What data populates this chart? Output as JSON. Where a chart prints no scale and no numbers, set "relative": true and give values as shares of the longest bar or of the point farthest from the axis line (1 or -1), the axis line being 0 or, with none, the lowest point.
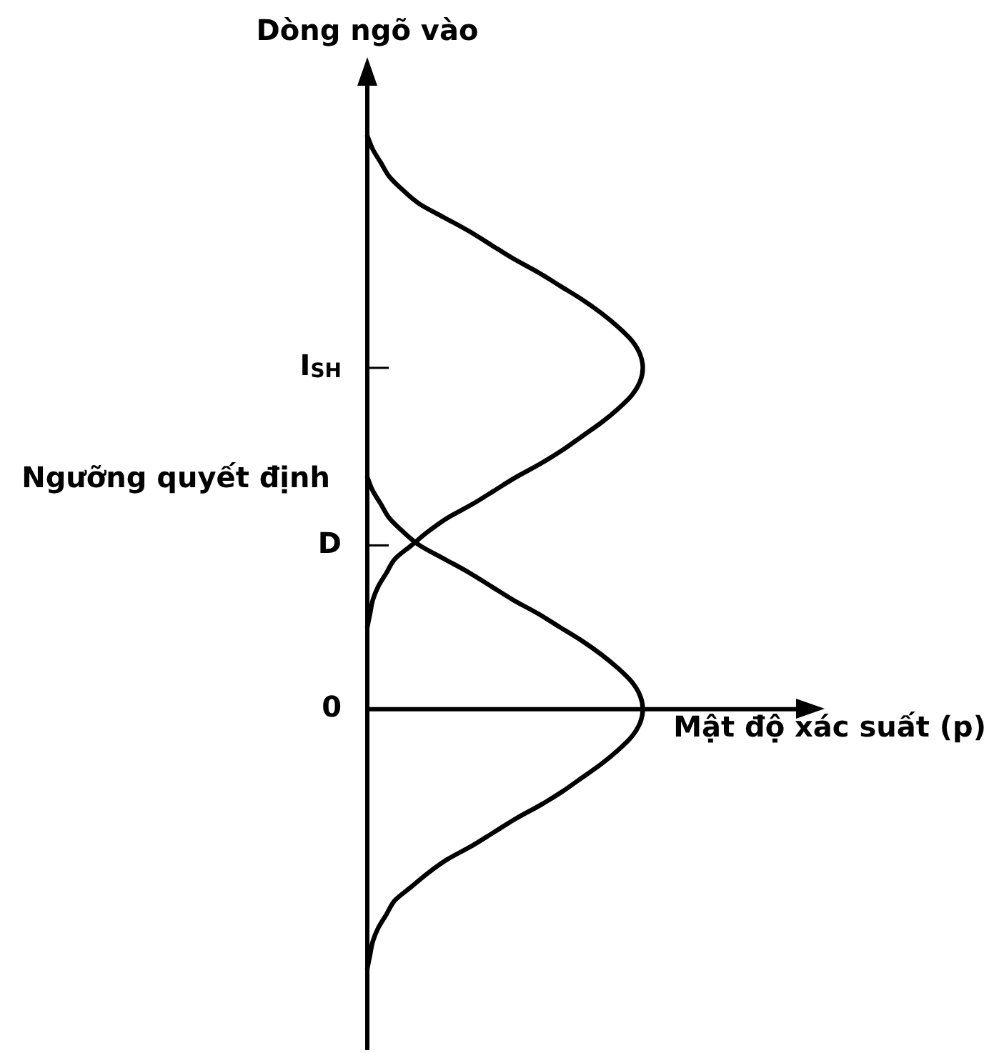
{
  "chart_data": {
    "type": "line",
    "orientation": "horizontal",
    "relative": true,
    "ylabel": "Dòng ngõ vào",
    "xlabel": "Mật độ xác suất (p)",
    "tick_labels": "y",
    "annotations": [
      "Ngưỡng quyết định"
    ],
    "categories": [
      null,
      null,
      null,
      null,
      null,
      null,
      null,
      null,
      null,
      null,
      null,
      null,
      null,
      null,
      null,
      null,
      null,
      "I$_{SH}$",
      null,
      null,
      null,
      null,
      null,
      null,
      null,
      null,
      null,
      null,
      null,
      null,
      "D",
      null,
      null,
      null,
      null,
      null,
      null,
      null,
      null,
      null,
      null,
      null,
      "0",
      null,
      null,
      null,
      null,
      null,
      null,
      null,
      null,
      null,
      null,
      null,
      null,
      null,
      null,
      null,
      null,
      null,
      null,
      null
    ],
    "series": [
      {
        "color": "#000000",
        "values": [
          0,
          0.02,
          0.05,
          0.08,
          0.13,
          0.19,
          0.28,
          0.37,
          0.45,
          0.53,
          0.62,
          0.7,
          0.78,
          0.85,
          0.91,
          0.96,
          0.99,
          1,
          0.99,
          0.96,
          0.91,
          0.85,
          0.78,
          0.71,
          0.63,
          0.54,
          0.46,
          0.38,
          0.29,
          0.22,
          0.16,
          0.1,
          0.07,
          0.04,
          0.02,
          0.01,
          0,
          null,
          null,
          null,
          null,
          null,
          null,
          null,
          null,
          null,
          null,
          null,
          null,
          null,
          null,
          null,
          null,
          null,
          null,
          null,
          null,
          null,
          null,
          null,
          null,
          null
        ]
      },
      {
        "color": "#000000",
        "values": [
          null,
          null,
          null,
          null,
          null,
          null,
          null,
          null,
          null,
          null,
          null,
          null,
          null,
          null,
          null,
          null,
          null,
          null,
          null,
          null,
          null,
          null,
          null,
          null,
          null,
          0,
          0.02,
          0.05,
          0.08,
          0.13,
          0.19,
          0.28,
          0.37,
          0.45,
          0.53,
          0.62,
          0.7,
          0.78,
          0.85,
          0.91,
          0.96,
          0.99,
          1,
          0.99,
          0.96,
          0.91,
          0.85,
          0.78,
          0.71,
          0.63,
          0.54,
          0.46,
          0.38,
          0.29,
          0.22,
          0.16,
          0.1,
          0.07,
          0.04,
          0.02,
          0.01,
          0
        ]
      }
    ]
  }
}
